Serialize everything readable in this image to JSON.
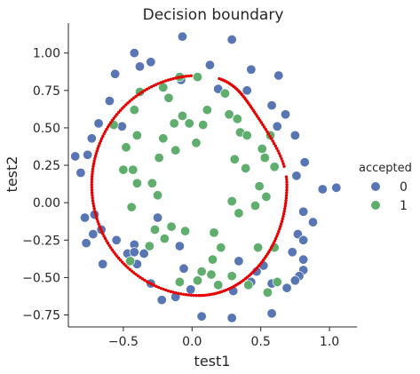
{
  "chart_data": {
    "type": "scatter",
    "title": "Decision boundary",
    "xlabel": "test1",
    "ylabel": "test2",
    "xlim": [
      -0.9,
      1.2
    ],
    "ylim": [
      -0.83,
      1.2
    ],
    "x_ticks": [
      -0.5,
      0.0,
      0.5,
      1.0
    ],
    "x_tick_labels": [
      "−0.5",
      "0.0",
      "0.5",
      "1.0"
    ],
    "y_ticks": [
      -0.75,
      -0.5,
      -0.25,
      0.0,
      0.25,
      0.5,
      0.75,
      1.0
    ],
    "y_tick_labels": [
      "−0.75",
      "−0.50",
      "−0.25",
      "0.00",
      "0.25",
      "0.50",
      "0.75",
      "1.00"
    ],
    "grid": false,
    "legend": {
      "title": "accepted",
      "placement": "right",
      "entries": [
        "0",
        "1"
      ]
    },
    "colors": {
      "rejected": "#5875b4",
      "accepted": "#5fae6e",
      "boundary": "#e60000"
    },
    "series": [
      {
        "name": "0",
        "points": [
          [
            -0.07,
            1.11
          ],
          [
            0.29,
            1.09
          ],
          [
            -0.42,
            1.0
          ],
          [
            -0.38,
            0.91
          ],
          [
            -0.3,
            0.94
          ],
          [
            0.13,
            0.92
          ],
          [
            0.43,
            0.89
          ],
          [
            0.63,
            0.85
          ],
          [
            -0.56,
            0.86
          ],
          [
            -0.08,
            0.82
          ],
          [
            0.4,
            0.75
          ],
          [
            0.19,
            0.76
          ],
          [
            -0.6,
            0.68
          ],
          [
            -0.68,
            0.53
          ],
          [
            -0.51,
            0.51
          ],
          [
            0.58,
            0.65
          ],
          [
            0.68,
            0.59
          ],
          [
            -0.73,
            0.43
          ],
          [
            0.75,
            0.45
          ],
          [
            0.62,
            0.51
          ],
          [
            -0.76,
            0.32
          ],
          [
            -0.85,
            0.31
          ],
          [
            0.82,
            0.27
          ],
          [
            -0.81,
            0.2
          ],
          [
            0.76,
            0.18
          ],
          [
            0.95,
            0.09
          ],
          [
            1.05,
            0.1
          ],
          [
            0.81,
            -0.06
          ],
          [
            -0.71,
            -0.08
          ],
          [
            -0.78,
            -0.1
          ],
          [
            0.88,
            -0.13
          ],
          [
            -0.66,
            -0.18
          ],
          [
            -0.25,
            -0.1
          ],
          [
            0.77,
            -0.21
          ],
          [
            -0.72,
            -0.21
          ],
          [
            -0.77,
            -0.27
          ],
          [
            -0.47,
            -0.34
          ],
          [
            -0.09,
            -0.29
          ],
          [
            -0.55,
            -0.25
          ],
          [
            0.81,
            -0.25
          ],
          [
            -0.42,
            -0.28
          ],
          [
            0.73,
            -0.33
          ],
          [
            0.81,
            -0.38
          ],
          [
            -0.42,
            -0.33
          ],
          [
            -0.35,
            -0.34
          ],
          [
            0.81,
            -0.45
          ],
          [
            -0.65,
            -0.41
          ],
          [
            -0.4,
            -0.41
          ],
          [
            0.34,
            -0.39
          ],
          [
            0.52,
            -0.42
          ],
          [
            0.47,
            -0.46
          ],
          [
            -0.06,
            -0.44
          ],
          [
            0.78,
            -0.49
          ],
          [
            0.58,
            -0.54
          ],
          [
            -0.3,
            -0.54
          ],
          [
            0.69,
            -0.57
          ],
          [
            0.75,
            -0.52
          ],
          [
            0.43,
            -0.53
          ],
          [
            -0.01,
            -0.58
          ],
          [
            0.3,
            -0.59
          ],
          [
            -0.12,
            -0.63
          ],
          [
            -0.22,
            -0.65
          ],
          [
            0.07,
            -0.76
          ],
          [
            0.29,
            -0.77
          ],
          [
            0.58,
            -0.74
          ]
        ]
      },
      {
        "name": "1",
        "points": [
          [
            -0.09,
            0.84
          ],
          [
            0.04,
            0.84
          ],
          [
            -0.21,
            0.77
          ],
          [
            -0.38,
            0.74
          ],
          [
            0.24,
            0.73
          ],
          [
            -0.17,
            0.7
          ],
          [
            0.11,
            0.62
          ],
          [
            -0.42,
            0.62
          ],
          [
            -0.07,
            0.58
          ],
          [
            0.27,
            0.59
          ],
          [
            0.33,
            0.56
          ],
          [
            -0.13,
            0.53
          ],
          [
            -0.57,
            0.52
          ],
          [
            -0.02,
            0.53
          ],
          [
            0.08,
            0.52
          ],
          [
            0.35,
            0.47
          ],
          [
            0.4,
            0.45
          ],
          [
            0.57,
            0.45
          ],
          [
            -0.4,
            0.45
          ],
          [
            -0.21,
            0.43
          ],
          [
            -0.48,
            0.37
          ],
          [
            -0.12,
            0.35
          ],
          [
            0.03,
            0.4
          ],
          [
            0.51,
            0.36
          ],
          [
            -0.24,
            0.3
          ],
          [
            0.31,
            0.29
          ],
          [
            0.53,
            0.3
          ],
          [
            0.39,
            0.23
          ],
          [
            -0.43,
            0.22
          ],
          [
            -0.5,
            0.22
          ],
          [
            0.6,
            0.24
          ],
          [
            0.49,
            0.11
          ],
          [
            -0.4,
            0.13
          ],
          [
            -0.29,
            0.13
          ],
          [
            -0.25,
            0.05
          ],
          [
            0.29,
            0.01
          ],
          [
            0.54,
            0.04
          ],
          [
            -0.44,
            -0.03
          ],
          [
            0.34,
            -0.07
          ],
          [
            0.46,
            -0.02
          ],
          [
            -0.15,
            -0.16
          ],
          [
            -0.27,
            -0.18
          ],
          [
            -0.05,
            -0.19
          ],
          [
            0.16,
            -0.2
          ],
          [
            -0.2,
            -0.24
          ],
          [
            0.21,
            -0.3
          ],
          [
            -0.31,
            -0.29
          ],
          [
            0.48,
            -0.3
          ],
          [
            0.15,
            -0.38
          ],
          [
            -0.45,
            -0.39
          ],
          [
            0.07,
            -0.46
          ],
          [
            -0.09,
            -0.53
          ],
          [
            0.04,
            -0.52
          ],
          [
            0.19,
            -0.55
          ],
          [
            0.41,
            -0.55
          ],
          [
            0.29,
            -0.49
          ],
          [
            0.14,
            -0.48
          ],
          [
            0.62,
            -0.53
          ],
          [
            0.55,
            -0.6
          ],
          [
            0.6,
            -0.3
          ]
        ]
      }
    ]
  }
}
